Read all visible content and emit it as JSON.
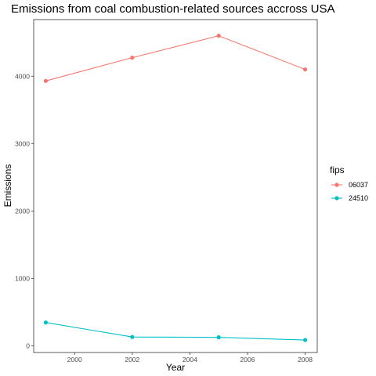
{
  "chart_data": {
    "type": "line",
    "title": "Emissions from coal combustion-related sources accross USA",
    "xlabel": "Year",
    "ylabel": "Emissions",
    "x": [
      1999,
      2002,
      2005,
      2008
    ],
    "xlim": [
      1998.58,
      2008.42
    ],
    "ylim": [
      -100,
      4840
    ],
    "x_ticks": [
      2000,
      2002,
      2004,
      2006,
      2008
    ],
    "y_ticks": [
      0,
      1000,
      2000,
      3000,
      4000
    ],
    "grid": false,
    "legend": {
      "title": "fips",
      "position": "right"
    },
    "series": [
      {
        "name": "06037",
        "color": "#F8766D",
        "values": [
          3930,
          4275,
          4600,
          4100
        ]
      },
      {
        "name": "24510",
        "color": "#00BFC4",
        "values": [
          345,
          130,
          125,
          85
        ]
      }
    ]
  }
}
